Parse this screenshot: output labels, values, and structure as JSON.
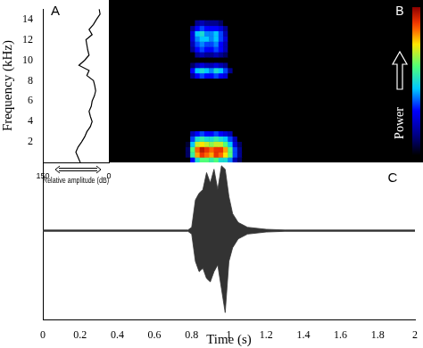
{
  "chart_data": [
    {
      "type": "line",
      "panel_label": "A",
      "xlabel": "Relative amplitude (dB)",
      "ylabel": "Frequency (kHz)",
      "frequency": [
        0,
        0.5,
        1,
        1.5,
        2,
        2.5,
        3,
        3.5,
        4,
        4.5,
        5,
        5.5,
        6,
        6.5,
        7,
        7.5,
        8,
        8.5,
        9,
        9.5,
        10,
        10.5,
        11,
        11.5,
        12,
        12.5,
        13,
        13.5,
        14,
        14.5,
        15
      ],
      "amplitude": [
        65,
        70,
        75,
        70,
        62,
        55,
        50,
        42,
        38,
        42,
        45,
        40,
        38,
        33,
        30,
        32,
        35,
        50,
        45,
        68,
        55,
        45,
        48,
        50,
        52,
        38,
        45,
        35,
        28,
        20,
        22
      ],
      "xlim": [
        150,
        0
      ],
      "xticks": [
        150,
        0
      ],
      "ylim": [
        0,
        15
      ],
      "yticks": [
        2,
        4,
        6,
        8,
        10,
        12,
        14
      ],
      "color": "#000000"
    },
    {
      "type": "heatmap",
      "panel_label": "B",
      "x": [
        0.78,
        0.805,
        0.83,
        0.855,
        0.88,
        0.905,
        0.93,
        0.955,
        0.98,
        1.005,
        1.03,
        1.055,
        1.08
      ],
      "y": [
        0.25,
        0.75,
        1.25,
        1.75,
        2.25,
        2.75,
        3.25,
        3.75,
        4.25,
        4.75,
        5.25,
        5.75,
        6.25,
        6.75,
        7.25,
        7.75,
        8.25,
        8.75,
        9.25,
        9.75,
        10.25,
        10.75,
        11.25,
        11.75,
        12.25,
        12.75,
        13.25
      ],
      "z": [
        [
          0,
          0.3,
          0.5,
          0.6,
          0.6,
          0.55,
          0.6,
          0.5,
          0.5,
          0.4,
          0.2,
          0.1,
          0
        ],
        [
          0.1,
          0.55,
          0.8,
          0.9,
          0.85,
          0.8,
          0.9,
          0.85,
          0.75,
          0.6,
          0.35,
          0.15,
          0
        ],
        [
          0.1,
          0.6,
          0.85,
          0.95,
          0.9,
          0.85,
          0.9,
          0.9,
          0.8,
          0.6,
          0.35,
          0.15,
          0
        ],
        [
          0.05,
          0.45,
          0.7,
          0.75,
          0.7,
          0.65,
          0.7,
          0.7,
          0.6,
          0.45,
          0.25,
          0.1,
          0
        ],
        [
          0,
          0.35,
          0.5,
          0.55,
          0.5,
          0.5,
          0.55,
          0.5,
          0.45,
          0.35,
          0.2,
          0,
          0
        ],
        [
          0,
          0.2,
          0.3,
          0.35,
          0.3,
          0.3,
          0.35,
          0.3,
          0.25,
          0.2,
          0,
          0,
          0
        ],
        [
          0,
          0,
          0,
          0,
          0,
          0,
          0,
          0,
          0,
          0,
          0,
          0,
          0
        ],
        [
          0,
          0,
          0,
          0,
          0,
          0,
          0,
          0,
          0,
          0,
          0,
          0,
          0
        ],
        [
          0,
          0,
          0,
          0,
          0,
          0,
          0,
          0,
          0,
          0,
          0,
          0,
          0
        ],
        [
          0,
          0,
          0,
          0,
          0,
          0,
          0,
          0,
          0,
          0,
          0,
          0,
          0
        ],
        [
          0,
          0,
          0,
          0,
          0,
          0,
          0,
          0,
          0,
          0,
          0,
          0,
          0
        ],
        [
          0,
          0,
          0,
          0,
          0,
          0,
          0,
          0,
          0,
          0,
          0,
          0,
          0
        ],
        [
          0,
          0,
          0,
          0,
          0,
          0,
          0,
          0,
          0,
          0,
          0,
          0,
          0
        ],
        [
          0,
          0,
          0,
          0,
          0,
          0,
          0,
          0,
          0,
          0,
          0,
          0,
          0
        ],
        [
          0,
          0,
          0,
          0,
          0,
          0,
          0,
          0,
          0,
          0,
          0,
          0,
          0
        ],
        [
          0,
          0,
          0,
          0,
          0,
          0,
          0,
          0,
          0,
          0,
          0,
          0,
          0
        ],
        [
          0,
          0.15,
          0.3,
          0.35,
          0.3,
          0.3,
          0.35,
          0.3,
          0.25,
          0,
          0,
          0,
          0
        ],
        [
          0,
          0.3,
          0.45,
          0.5,
          0.45,
          0.4,
          0.5,
          0.45,
          0.35,
          0.15,
          0,
          0,
          0
        ],
        [
          0,
          0.1,
          0.2,
          0.25,
          0.2,
          0.2,
          0.25,
          0.2,
          0.15,
          0,
          0,
          0,
          0
        ],
        [
          0,
          0,
          0,
          0,
          0,
          0,
          0,
          0,
          0,
          0,
          0,
          0,
          0
        ],
        [
          0,
          0,
          0.15,
          0.2,
          0.15,
          0.15,
          0.2,
          0.15,
          0.1,
          0,
          0,
          0,
          0
        ],
        [
          0,
          0.15,
          0.3,
          0.35,
          0.3,
          0.3,
          0.35,
          0.3,
          0.2,
          0,
          0,
          0,
          0
        ],
        [
          0,
          0.2,
          0.35,
          0.4,
          0.35,
          0.35,
          0.4,
          0.3,
          0.2,
          0,
          0,
          0,
          0
        ],
        [
          0,
          0.25,
          0.4,
          0.45,
          0.45,
          0.4,
          0.45,
          0.35,
          0.25,
          0,
          0,
          0,
          0
        ],
        [
          0,
          0.25,
          0.45,
          0.5,
          0.4,
          0.4,
          0.45,
          0.35,
          0.2,
          0,
          0,
          0,
          0
        ],
        [
          0,
          0.15,
          0.3,
          0.35,
          0.3,
          0.3,
          0.3,
          0.25,
          0.15,
          0,
          0,
          0,
          0
        ],
        [
          0,
          0,
          0.15,
          0.2,
          0.15,
          0.15,
          0.15,
          0.1,
          0,
          0,
          0,
          0,
          0
        ]
      ],
      "xlim": [
        0.36,
        2.03
      ],
      "ylim": [
        0,
        15
      ],
      "tick_labels": false,
      "colorbar": {
        "label": "Power",
        "clim": [
          0,
          1
        ]
      }
    },
    {
      "type": "line",
      "panel_label": "C",
      "xlabel": "Time (s)",
      "x": [
        0,
        0.78,
        0.8,
        0.82,
        0.84,
        0.86,
        0.88,
        0.9,
        0.92,
        0.94,
        0.96,
        0.98,
        1,
        1.02,
        1.05,
        1.1,
        1.2,
        1.3,
        2
      ],
      "upper": [
        0.01,
        0.01,
        0.05,
        0.45,
        0.55,
        0.6,
        0.85,
        0.7,
        0.9,
        0.6,
        0.95,
        0.9,
        0.5,
        0.25,
        0.12,
        0.05,
        0.02,
        0.01,
        0.01
      ],
      "lower": [
        -0.01,
        -0.01,
        -0.05,
        -0.45,
        -0.6,
        -0.55,
        -0.7,
        -0.75,
        -0.6,
        -0.5,
        -0.85,
        -1.2,
        -0.45,
        -0.25,
        -0.12,
        -0.05,
        -0.02,
        -0.01,
        -0.01
      ],
      "xlim": [
        0,
        2
      ],
      "xticks": [
        0,
        0.2,
        0.4,
        0.6,
        0.8,
        1,
        1.2,
        1.4,
        1.6,
        1.8,
        2
      ],
      "ylim": [
        -1.3,
        1
      ],
      "tick_labels": "x",
      "color": "#333333"
    }
  ]
}
